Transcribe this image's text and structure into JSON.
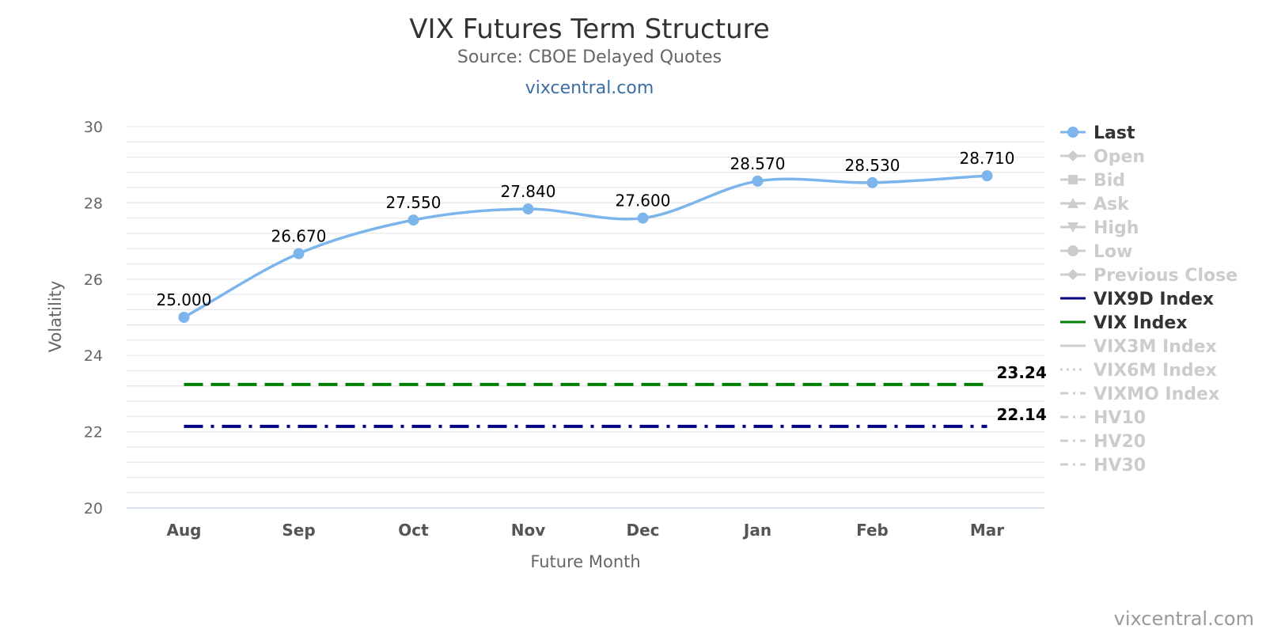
{
  "chart": {
    "title": "VIX Futures Term Structure",
    "subtitle": "Source: CBOE Delayed Quotes",
    "link": "vixcentral.com",
    "credit": "vixcentral.com"
  },
  "colors": {
    "last": "#7cb5ec",
    "vix9d": "#000080",
    "vix": "#008000",
    "grid": "#e6e6e6",
    "legend_active": "#333333",
    "legend_inactive": "#cccccc"
  },
  "chart_data": {
    "type": "line",
    "title": "VIX Futures Term Structure",
    "subtitle": "Source: CBOE Delayed Quotes",
    "xlabel": "Future Month",
    "ylabel": "Volatility",
    "categories": [
      "Aug",
      "Sep",
      "Oct",
      "Nov",
      "Dec",
      "Jan",
      "Feb",
      "Mar"
    ],
    "ylim": [
      20,
      30
    ],
    "yticks": [
      "20",
      "22",
      "24",
      "26",
      "28",
      "30"
    ],
    "grid": true,
    "legend_position": "right",
    "series": [
      {
        "name": "Last",
        "values": [
          25.0,
          26.67,
          27.55,
          27.84,
          27.6,
          28.57,
          28.53,
          28.71
        ],
        "labels": [
          "25.000",
          "26.670",
          "27.550",
          "27.840",
          "27.600",
          "28.570",
          "28.530",
          "28.710"
        ]
      }
    ],
    "reference_lines": [
      {
        "name": "VIX Index",
        "value": 23.24,
        "label": "23.24",
        "style": "dashed"
      },
      {
        "name": "VIX9D Index",
        "value": 22.14,
        "label": "22.14",
        "style": "dash-dot"
      }
    ]
  },
  "legend": [
    {
      "label": "Last",
      "active": true,
      "symbol": "circle"
    },
    {
      "label": "Open",
      "active": false,
      "symbol": "diamond"
    },
    {
      "label": "Bid",
      "active": false,
      "symbol": "square"
    },
    {
      "label": "Ask",
      "active": false,
      "symbol": "triangle"
    },
    {
      "label": "High",
      "active": false,
      "symbol": "triangle-down"
    },
    {
      "label": "Low",
      "active": false,
      "symbol": "circle"
    },
    {
      "label": "Previous Close",
      "active": false,
      "symbol": "diamond"
    },
    {
      "label": "VIX9D Index",
      "active": true,
      "symbol": "line-vix9d"
    },
    {
      "label": "VIX Index",
      "active": true,
      "symbol": "line-vix"
    },
    {
      "label": "VIX3M Index",
      "active": false,
      "symbol": "line-solid"
    },
    {
      "label": "VIX6M Index",
      "active": false,
      "symbol": "line-dotted"
    },
    {
      "label": "VIXMO Index",
      "active": false,
      "symbol": "line-dashdot"
    },
    {
      "label": "HV10",
      "active": false,
      "symbol": "line-dashdot"
    },
    {
      "label": "HV20",
      "active": false,
      "symbol": "line-dashdot"
    },
    {
      "label": "HV30",
      "active": false,
      "symbol": "line-dashdot"
    }
  ]
}
